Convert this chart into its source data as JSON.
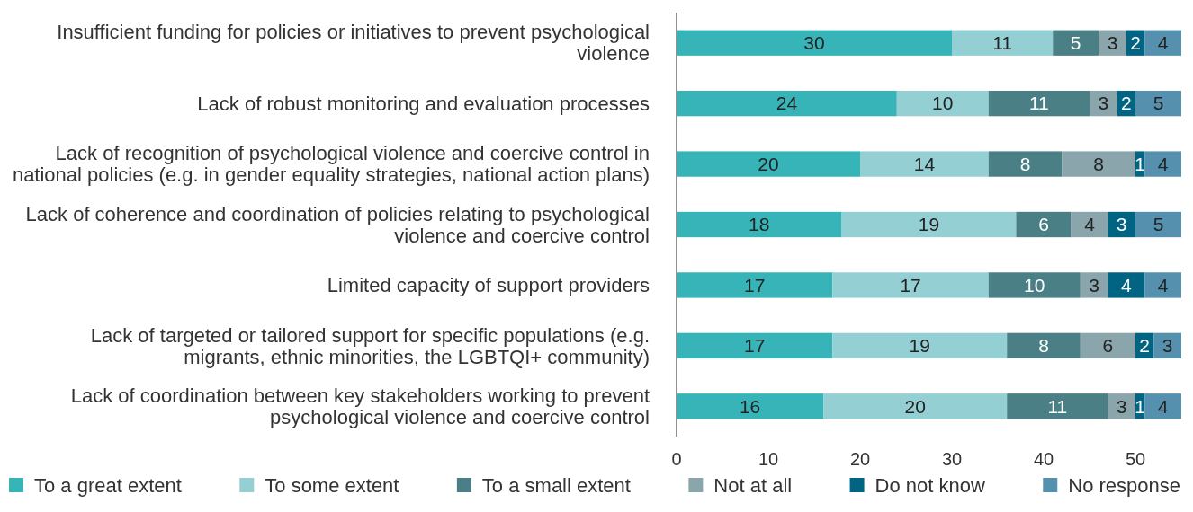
{
  "chart_data": {
    "type": "bar",
    "orientation": "horizontal",
    "stacked": true,
    "data_labels": true,
    "legend": "bottom",
    "grid": false,
    "categories": [
      "Insufficient funding for policies or initiatives to prevent psychological violence",
      "Lack of robust monitoring and evaluation processes",
      "Lack of recognition of psychological violence and coercive control in national policies (e.g. in gender equality strategies, national action plans)",
      "Lack of coherence and coordination of policies relating to psychological violence and coercive control",
      "Limited capacity of support providers",
      "Lack of targeted or tailored support for specific populations (e.g. migrants, ethnic minorities, the LGBTQI+ community)",
      "Lack of coordination between key stakeholders working to prevent psychological violence and coercive control"
    ],
    "series": [
      {
        "name": "To a great extent",
        "color": "#36b4b8",
        "values": [
          30,
          24,
          20,
          18,
          17,
          17,
          16
        ]
      },
      {
        "name": "To some extent",
        "color": "#93cfd3",
        "values": [
          11,
          10,
          14,
          19,
          17,
          19,
          20
        ]
      },
      {
        "name": "To a small extent",
        "color": "#4b7f86",
        "values": [
          5,
          11,
          8,
          6,
          10,
          8,
          11
        ]
      },
      {
        "name": "Not at all",
        "color": "#8aa5ab",
        "values": [
          3,
          3,
          8,
          4,
          3,
          6,
          3
        ]
      },
      {
        "name": "Do not know",
        "color": "#006482",
        "values": [
          2,
          2,
          1,
          3,
          4,
          2,
          1
        ]
      },
      {
        "name": "No response",
        "color": "#5591ae",
        "values": [
          4,
          5,
          4,
          5,
          4,
          3,
          4
        ]
      }
    ],
    "xlim": [
      0,
      55
    ],
    "xticks": [
      0,
      10,
      20,
      30,
      40,
      50
    ]
  }
}
